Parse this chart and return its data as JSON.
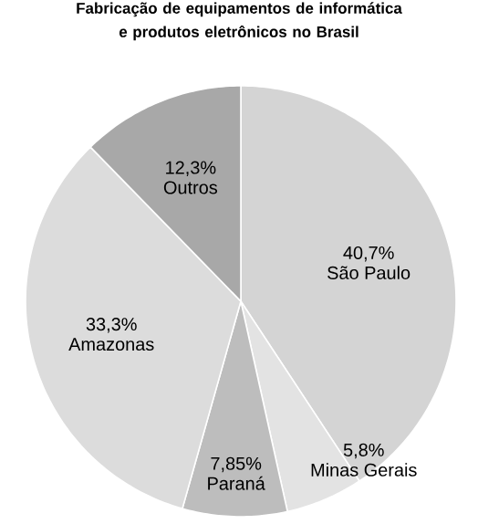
{
  "chart_data": {
    "type": "pie",
    "title": "Fabricação de equipamentos de informática e produtos eletrônicos no Brasil",
    "categories": [
      "São Paulo",
      "Minas Gerais",
      "Paraná",
      "Amazonas",
      "Outros"
    ],
    "values": [
      40.7,
      5.8,
      7.85,
      33.3,
      12.3
    ],
    "value_labels": [
      "40,7%",
      "5,8%",
      "7,85%",
      "33,3%",
      "12,3%"
    ],
    "colors": [
      "#d4d4d4",
      "#e3e3e3",
      "#bdbdbd",
      "#dcdcdc",
      "#a8a8a8"
    ]
  }
}
